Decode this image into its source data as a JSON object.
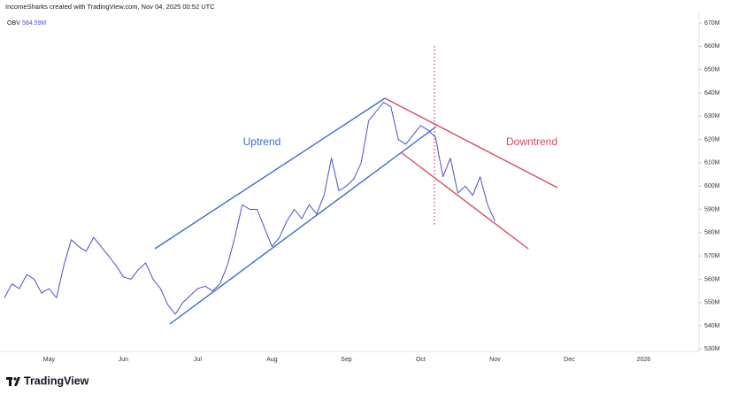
{
  "header": {
    "credit": "IncomeSharks created with TradingView.com, Nov 04, 2025 00:52 UTC",
    "indicator": "OBV",
    "indicator_value": "584.59M"
  },
  "footer": {
    "brand": "TradingView"
  },
  "chart_data": {
    "type": "line",
    "annotations": [
      "Uptrend",
      "Downtrend"
    ],
    "categories": [
      null,
      null,
      null,
      null,
      null,
      null,
      "May",
      null,
      null,
      null,
      null,
      null,
      null,
      null,
      null,
      null,
      "Jun",
      null,
      null,
      null,
      null,
      null,
      null,
      null,
      null,
      null,
      "Jul",
      null,
      null,
      null,
      null,
      null,
      null,
      null,
      null,
      null,
      "Aug",
      null,
      null,
      null,
      null,
      null,
      null,
      null,
      null,
      null,
      "Sep",
      null,
      null,
      null,
      null,
      null,
      null,
      null,
      null,
      null,
      "Oct",
      null,
      null,
      null,
      null,
      null,
      null,
      null,
      null,
      null,
      "Nov",
      null,
      null,
      null,
      null,
      null,
      null,
      null,
      null,
      null,
      "Dec",
      null,
      null,
      null,
      null,
      null,
      null,
      null,
      null,
      null,
      "2026",
      null,
      null,
      null,
      null,
      null,
      null,
      null
    ],
    "series": [
      {
        "name": "OBV",
        "color": "#4b50c8",
        "values": [
          552,
          558,
          556,
          562,
          560,
          554,
          556,
          552,
          566,
          577,
          574,
          572,
          578,
          574,
          570,
          566,
          561,
          560,
          564,
          567,
          560,
          556,
          549,
          545,
          550,
          553,
          556,
          557,
          555,
          558,
          566,
          578,
          592,
          590,
          590,
          582,
          574,
          578,
          585,
          590,
          586,
          592,
          588,
          596,
          612,
          598,
          600,
          603,
          610,
          628,
          632,
          636,
          634,
          620,
          618,
          622,
          626,
          624,
          621,
          604,
          612,
          597,
          600,
          596,
          604,
          592,
          585,
          null,
          null,
          null,
          null,
          null,
          null,
          null,
          null,
          null,
          null,
          null,
          null,
          null,
          null,
          null,
          null,
          null,
          null,
          null,
          null,
          null,
          null,
          null,
          null,
          null,
          null,
          null
        ]
      }
    ],
    "ylim": [
      529,
      678
    ],
    "yticks": [
      {
        "value": 530,
        "label": "530M"
      },
      {
        "value": 540,
        "label": "540M"
      },
      {
        "value": 550,
        "label": "550M"
      },
      {
        "value": 560,
        "label": "560M"
      },
      {
        "value": 570,
        "label": "570M"
      },
      {
        "value": 580,
        "label": "580M"
      },
      {
        "value": 590,
        "label": "590M"
      },
      {
        "value": 600,
        "label": "600M"
      },
      {
        "value": 610,
        "label": "610M"
      },
      {
        "value": 620,
        "label": "620M"
      },
      {
        "value": 630,
        "label": "630M"
      },
      {
        "value": 640,
        "label": "640M"
      },
      {
        "value": 650,
        "label": "650M"
      },
      {
        "value": 660,
        "label": "660M"
      },
      {
        "value": 670,
        "label": "670M"
      }
    ],
    "grid": false
  }
}
